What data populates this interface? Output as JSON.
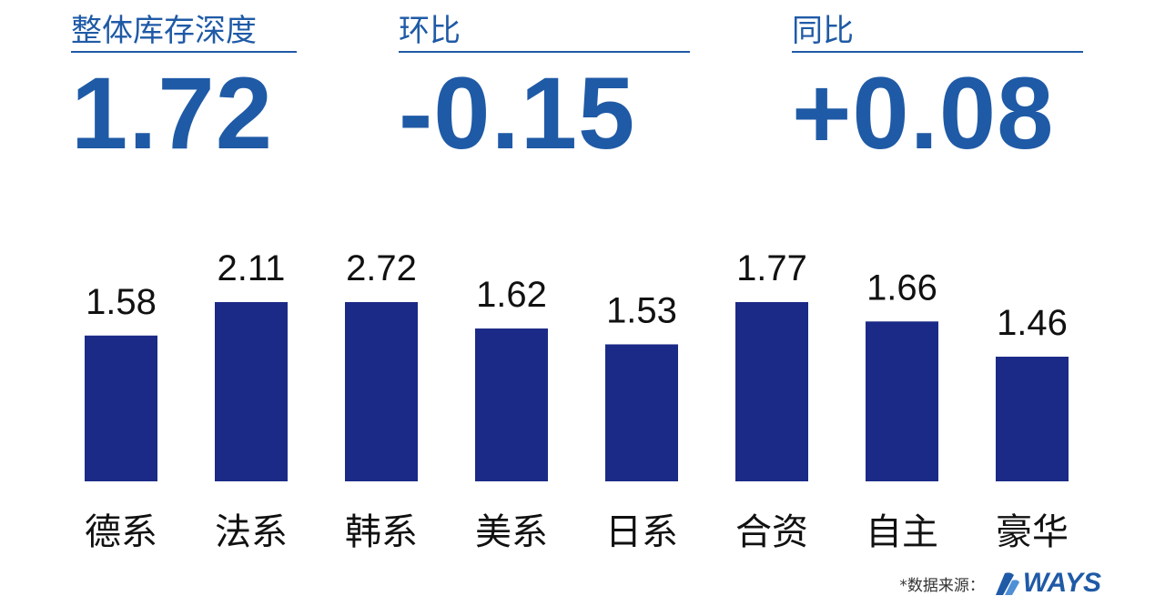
{
  "kpis": [
    {
      "label": "整体库存深度",
      "value": "1.72"
    },
    {
      "label": "环比",
      "value": "-0.15"
    },
    {
      "label": "同比",
      "value": "+0.08"
    }
  ],
  "colors": {
    "accent": "#1f5aa6",
    "bar": "#1b2a87",
    "text": "#111111"
  },
  "chart_data": {
    "type": "bar",
    "categories": [
      "德系",
      "法系",
      "韩系",
      "美系",
      "日系",
      "合资",
      "自主",
      "豪华"
    ],
    "values": [
      1.58,
      2.11,
      2.72,
      1.62,
      1.53,
      1.77,
      1.66,
      1.46
    ],
    "title": "",
    "xlabel": "",
    "ylabel": ""
  },
  "footer": {
    "source_label": "*数据来源：",
    "logo_text": "WAYS"
  }
}
